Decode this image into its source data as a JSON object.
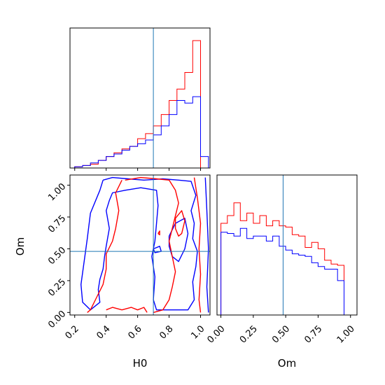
{
  "chart_data": {
    "type": "corner-plot",
    "parameters": [
      "H0",
      "Om"
    ],
    "truths": {
      "H0": 0.7,
      "Om": 0.48
    },
    "colors": {
      "series_red": "#ff0000",
      "series_blue": "#0000ff",
      "truth_line": "#1f77b4"
    },
    "x_axis_labels": {
      "h0": "H0",
      "om": "Om"
    },
    "y_axis_label": "Om",
    "panels": {
      "h0_hist": {
        "xlim": [
          0.17,
          1.06
        ],
        "bins": [
          0.2,
          0.25,
          0.3,
          0.35,
          0.4,
          0.45,
          0.5,
          0.55,
          0.6,
          0.65,
          0.7,
          0.75,
          0.8,
          0.85,
          0.9,
          0.95,
          1.0
        ],
        "series": [
          {
            "color": "red",
            "values": [
              0.01,
              0.02,
              0.03,
              0.06,
              0.09,
              0.12,
              0.15,
              0.17,
              0.23,
              0.27,
              0.33,
              0.42,
              0.53,
              0.62,
              0.75,
              1.0,
              0.0
            ]
          },
          {
            "color": "blue",
            "values": [
              0.01,
              0.02,
              0.04,
              0.06,
              0.09,
              0.11,
              0.14,
              0.17,
              0.19,
              0.22,
              0.26,
              0.33,
              0.42,
              0.53,
              0.51,
              0.56,
              0.09
            ]
          }
        ]
      },
      "om_hist": {
        "xlim": [
          -0.03,
          1.05
        ],
        "ticks": [
          0.0,
          0.25,
          0.5,
          0.75,
          1.0
        ],
        "tick_labels": [
          "0.00",
          "0.25",
          "0.50",
          "0.75",
          "1.00"
        ],
        "bins": [
          0.0,
          0.05,
          0.1,
          0.15,
          0.2,
          0.25,
          0.3,
          0.35,
          0.4,
          0.45,
          0.5,
          0.55,
          0.6,
          0.65,
          0.7,
          0.75,
          0.8,
          0.85,
          0.9,
          0.95,
          1.0,
          1.05
        ],
        "series": [
          {
            "color": "red",
            "values": [
              0.72,
              0.78,
              0.88,
              0.74,
              0.8,
              0.72,
              0.78,
              0.7,
              0.74,
              0.7,
              0.69,
              0.63,
              0.62,
              0.53,
              0.57,
              0.52,
              0.43,
              0.4,
              0.39,
              0.0,
              0.0
            ]
          },
          {
            "color": "blue",
            "values": [
              0.65,
              0.64,
              0.62,
              0.68,
              0.6,
              0.62,
              0.62,
              0.58,
              0.62,
              0.54,
              0.51,
              0.48,
              0.47,
              0.46,
              0.41,
              0.38,
              0.36,
              0.36,
              0.27,
              0.0,
              0.0
            ]
          }
        ]
      },
      "joint": {
        "xlim": [
          0.17,
          1.06
        ],
        "ylim": [
          -0.02,
          1.08
        ],
        "xticks": [
          0.2,
          0.4,
          0.6,
          0.8,
          1.0
        ],
        "xtick_labels": [
          "0.2",
          "0.4",
          "0.6",
          "0.8",
          "1.0"
        ],
        "yticks": [
          0.0,
          0.25,
          0.5,
          0.75,
          1.0
        ],
        "ytick_labels": [
          "0.00",
          "0.25",
          "0.50",
          "0.75",
          "1.00"
        ],
        "contours": [
          {
            "color": "blue",
            "points": [
              [
                0.38,
                1.04
              ],
              [
                0.44,
                1.06
              ],
              [
                0.54,
                1.05
              ],
              [
                0.64,
                1.04
              ],
              [
                0.76,
                1.05
              ],
              [
                0.86,
                1.04
              ],
              [
                0.94,
                1.03
              ],
              [
                0.97,
                0.92
              ],
              [
                0.94,
                0.8
              ],
              [
                0.96,
                0.7
              ],
              [
                0.95,
                0.58
              ],
              [
                0.98,
                0.48
              ],
              [
                0.97,
                0.36
              ],
              [
                0.95,
                0.24
              ],
              [
                0.96,
                0.1
              ],
              [
                0.92,
                0.02
              ],
              [
                0.8,
                0.02
              ],
              [
                0.74,
                0.02
              ],
              [
                0.72,
                0.02
              ],
              [
                0.7,
                0.1
              ],
              [
                0.71,
                0.28
              ],
              [
                0.69,
                0.44
              ],
              [
                0.71,
                0.56
              ],
              [
                0.72,
                0.7
              ],
              [
                0.73,
                0.84
              ],
              [
                0.72,
                0.96
              ],
              [
                0.62,
                0.98
              ],
              [
                0.52,
                0.96
              ],
              [
                0.44,
                0.94
              ],
              [
                0.42,
                0.88
              ],
              [
                0.4,
                0.8
              ],
              [
                0.42,
                0.66
              ],
              [
                0.4,
                0.52
              ],
              [
                0.39,
                0.44
              ],
              [
                0.38,
                0.34
              ],
              [
                0.36,
                0.26
              ],
              [
                0.35,
                0.18
              ],
              [
                0.36,
                0.08
              ],
              [
                0.3,
                0.02
              ],
              [
                0.25,
                0.08
              ],
              [
                0.24,
                0.22
              ],
              [
                0.26,
                0.4
              ],
              [
                0.28,
                0.58
              ],
              [
                0.3,
                0.78
              ],
              [
                0.36,
                0.96
              ],
              [
                0.38,
                1.04
              ]
            ]
          },
          {
            "color": "blue",
            "points": [
              [
                0.7,
                0.5
              ],
              [
                0.74,
                0.52
              ],
              [
                0.75,
                0.48
              ],
              [
                0.71,
                0.47
              ],
              [
                0.7,
                0.5
              ]
            ]
          },
          {
            "color": "blue",
            "points": [
              [
                0.8,
                0.6
              ],
              [
                0.84,
                0.7
              ],
              [
                0.9,
                0.74
              ],
              [
                0.92,
                0.62
              ],
              [
                0.9,
                0.5
              ],
              [
                0.86,
                0.4
              ],
              [
                0.82,
                0.44
              ],
              [
                0.8,
                0.52
              ],
              [
                0.8,
                0.6
              ]
            ]
          },
          {
            "color": "blue",
            "points": [
              [
                1.03,
                1.06
              ],
              [
                1.04,
                0.8
              ],
              [
                1.05,
                0.5
              ],
              [
                1.04,
                0.2
              ],
              [
                1.05,
                0.0
              ]
            ]
          },
          {
            "color": "red",
            "points": [
              [
                0.52,
                1.04
              ],
              [
                0.62,
                1.06
              ],
              [
                0.72,
                1.05
              ],
              [
                0.8,
                1.04
              ],
              [
                0.84,
                0.96
              ],
              [
                0.86,
                0.86
              ],
              [
                0.84,
                0.76
              ],
              [
                0.82,
                0.66
              ],
              [
                0.8,
                0.56
              ],
              [
                0.82,
                0.44
              ],
              [
                0.84,
                0.32
              ],
              [
                0.82,
                0.2
              ],
              [
                0.8,
                0.1
              ],
              [
                0.76,
                0.02
              ],
              [
                0.7,
                0.0
              ]
            ]
          },
          {
            "color": "red",
            "points": [
              [
                0.5,
                1.04
              ],
              [
                0.46,
                0.94
              ],
              [
                0.48,
                0.8
              ],
              [
                0.46,
                0.66
              ],
              [
                0.44,
                0.56
              ],
              [
                0.4,
                0.46
              ],
              [
                0.4,
                0.34
              ],
              [
                0.38,
                0.22
              ],
              [
                0.34,
                0.12
              ],
              [
                0.3,
                0.02
              ],
              [
                0.28,
                0.0
              ]
            ]
          },
          {
            "color": "red",
            "points": [
              [
                0.4,
                0.02
              ],
              [
                0.44,
                0.04
              ],
              [
                0.5,
                0.02
              ],
              [
                0.56,
                0.04
              ],
              [
                0.6,
                0.02
              ],
              [
                0.64,
                0.04
              ],
              [
                0.66,
                0.0
              ]
            ]
          },
          {
            "color": "red",
            "points": [
              [
                0.96,
                1.06
              ],
              [
                0.98,
                0.9
              ],
              [
                1.0,
                0.7
              ],
              [
                0.99,
                0.5
              ],
              [
                1.0,
                0.3
              ],
              [
                0.99,
                0.1
              ],
              [
                1.0,
                0.0
              ]
            ]
          },
          {
            "color": "red",
            "points": [
              [
                0.84,
                0.74
              ],
              [
                0.88,
                0.8
              ],
              [
                0.9,
                0.72
              ],
              [
                0.88,
                0.62
              ],
              [
                0.86,
                0.6
              ],
              [
                0.84,
                0.66
              ],
              [
                0.84,
                0.74
              ]
            ]
          },
          {
            "color": "red",
            "points": [
              [
                0.73,
                0.62
              ],
              [
                0.74,
                0.64
              ],
              [
                0.74,
                0.61
              ],
              [
                0.73,
                0.62
              ]
            ]
          }
        ]
      }
    }
  }
}
